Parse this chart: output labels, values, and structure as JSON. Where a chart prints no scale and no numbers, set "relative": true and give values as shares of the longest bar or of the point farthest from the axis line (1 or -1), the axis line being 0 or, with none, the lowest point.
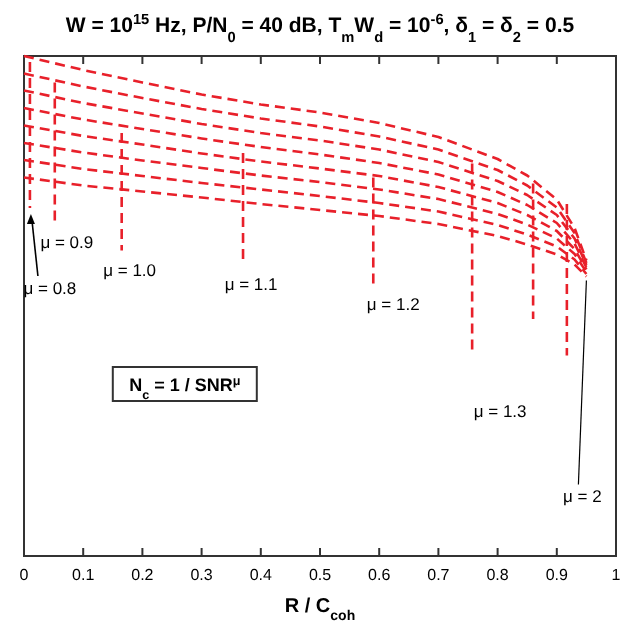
{
  "chart_data": {
    "type": "line",
    "relative": true,
    "title": "W = 10$^{15}$ Hz,   P/N$_{0}$ = 40 dB,   T$_{m}$W$_{d}$ = 10$^{-6}$,   δ$_{1}$ = δ$_{2}$ = 0.5",
    "xlabel": "R / C$_{coh}$",
    "xlim": [
      0,
      1
    ],
    "xticks": [
      0,
      0.1,
      0.2,
      0.3,
      0.4,
      0.5,
      0.6,
      0.7,
      0.8,
      0.9,
      1
    ],
    "line_style": "dashed",
    "grid": false,
    "series": [
      {
        "color": "#e8202a",
        "x": [
          0,
          0.1,
          0.2,
          0.3,
          0.4,
          0.5,
          0.6,
          0.7,
          0.8,
          0.85,
          0.9,
          0.93,
          0.95
        ],
        "values": [
          1.0,
          0.972,
          0.947,
          0.923,
          0.903,
          0.887,
          0.866,
          0.838,
          0.794,
          0.761,
          0.713,
          0.656,
          0.591
        ]
      },
      {
        "color": "#e8202a",
        "x": [
          0,
          0.1,
          0.2,
          0.3,
          0.4,
          0.5,
          0.6,
          0.7,
          0.8,
          0.85,
          0.9,
          0.93,
          0.95
        ],
        "values": [
          0.965,
          0.939,
          0.916,
          0.894,
          0.875,
          0.859,
          0.839,
          0.813,
          0.772,
          0.741,
          0.697,
          0.646,
          0.586
        ]
      },
      {
        "color": "#e8202a",
        "x": [
          0,
          0.1,
          0.2,
          0.3,
          0.4,
          0.5,
          0.6,
          0.7,
          0.8,
          0.85,
          0.9,
          0.93,
          0.95
        ],
        "values": [
          0.931,
          0.906,
          0.885,
          0.864,
          0.846,
          0.831,
          0.813,
          0.788,
          0.75,
          0.722,
          0.682,
          0.635,
          0.582
        ]
      },
      {
        "color": "#e8202a",
        "x": [
          0,
          0.1,
          0.2,
          0.3,
          0.4,
          0.5,
          0.6,
          0.7,
          0.8,
          0.85,
          0.9,
          0.93,
          0.95
        ],
        "values": [
          0.896,
          0.873,
          0.854,
          0.835,
          0.818,
          0.803,
          0.786,
          0.763,
          0.728,
          0.702,
          0.666,
          0.625,
          0.577
        ]
      },
      {
        "color": "#e8202a",
        "x": [
          0,
          0.1,
          0.2,
          0.3,
          0.4,
          0.5,
          0.6,
          0.7,
          0.8,
          0.85,
          0.9,
          0.93,
          0.95
        ],
        "values": [
          0.861,
          0.84,
          0.823,
          0.805,
          0.789,
          0.775,
          0.76,
          0.738,
          0.706,
          0.682,
          0.65,
          0.614,
          0.573
        ]
      },
      {
        "color": "#e8202a",
        "x": [
          0,
          0.1,
          0.2,
          0.3,
          0.4,
          0.5,
          0.6,
          0.7,
          0.8,
          0.85,
          0.9,
          0.93,
          0.95
        ],
        "values": [
          0.826,
          0.807,
          0.791,
          0.776,
          0.761,
          0.748,
          0.733,
          0.714,
          0.684,
          0.663,
          0.635,
          0.604,
          0.568
        ]
      },
      {
        "color": "#e8202a",
        "x": [
          0,
          0.1,
          0.2,
          0.3,
          0.4,
          0.5,
          0.6,
          0.7,
          0.8,
          0.85,
          0.9,
          0.93,
          0.95
        ],
        "values": [
          0.792,
          0.774,
          0.76,
          0.746,
          0.733,
          0.72,
          0.706,
          0.689,
          0.662,
          0.643,
          0.619,
          0.593,
          0.564
        ]
      },
      {
        "color": "#e8202a",
        "x": [
          0,
          0.1,
          0.2,
          0.3,
          0.4,
          0.5,
          0.6,
          0.7,
          0.8,
          0.85,
          0.9,
          0.93,
          0.95
        ],
        "values": [
          0.757,
          0.741,
          0.729,
          0.717,
          0.704,
          0.692,
          0.68,
          0.664,
          0.64,
          0.623,
          0.603,
          0.583,
          0.559
        ]
      },
      {
        "color": "#e8202a",
        "x": [
          0.01,
          0.01
        ],
        "values": [
          0.988,
          0.696
        ]
      },
      {
        "color": "#e8202a",
        "x": [
          0.052,
          0.052
        ],
        "values": [
          0.947,
          0.664
        ]
      },
      {
        "color": "#e8202a",
        "x": [
          0.165,
          0.165
        ],
        "values": [
          0.846,
          0.611
        ]
      },
      {
        "color": "#e8202a",
        "x": [
          0.37,
          0.37
        ],
        "values": [
          0.806,
          0.583
        ]
      },
      {
        "color": "#e8202a",
        "x": [
          0.59,
          0.59
        ],
        "values": [
          0.757,
          0.543
        ]
      },
      {
        "color": "#e8202a",
        "x": [
          0.757,
          0.757
        ],
        "values": [
          0.785,
          0.409
        ]
      },
      {
        "color": "#e8202a",
        "x": [
          0.86,
          0.86
        ],
        "values": [
          0.745,
          0.474
        ]
      },
      {
        "color": "#e8202a",
        "x": [
          0.917,
          0.917
        ],
        "values": [
          0.704,
          0.401
        ]
      }
    ],
    "annotations": [
      {
        "text": "μ = 0.9",
        "x": 0.052,
        "y": 0.664
      },
      {
        "text": "μ = 0.8",
        "x": 0.01,
        "y": 0.696
      },
      {
        "text": "μ = 1.0",
        "x": 0.165,
        "y": 0.611
      },
      {
        "text": "μ = 1.1",
        "x": 0.37,
        "y": 0.583
      },
      {
        "text": "μ = 1.2",
        "x": 0.59,
        "y": 0.543
      },
      {
        "text": "μ = 1.3",
        "x": 0.757,
        "y": 0.409
      },
      {
        "text": "μ = 2",
        "x": 0.95,
        "y": 0.559
      },
      "N$_{c}$ = 1 / SNR$^{μ}$"
    ]
  }
}
